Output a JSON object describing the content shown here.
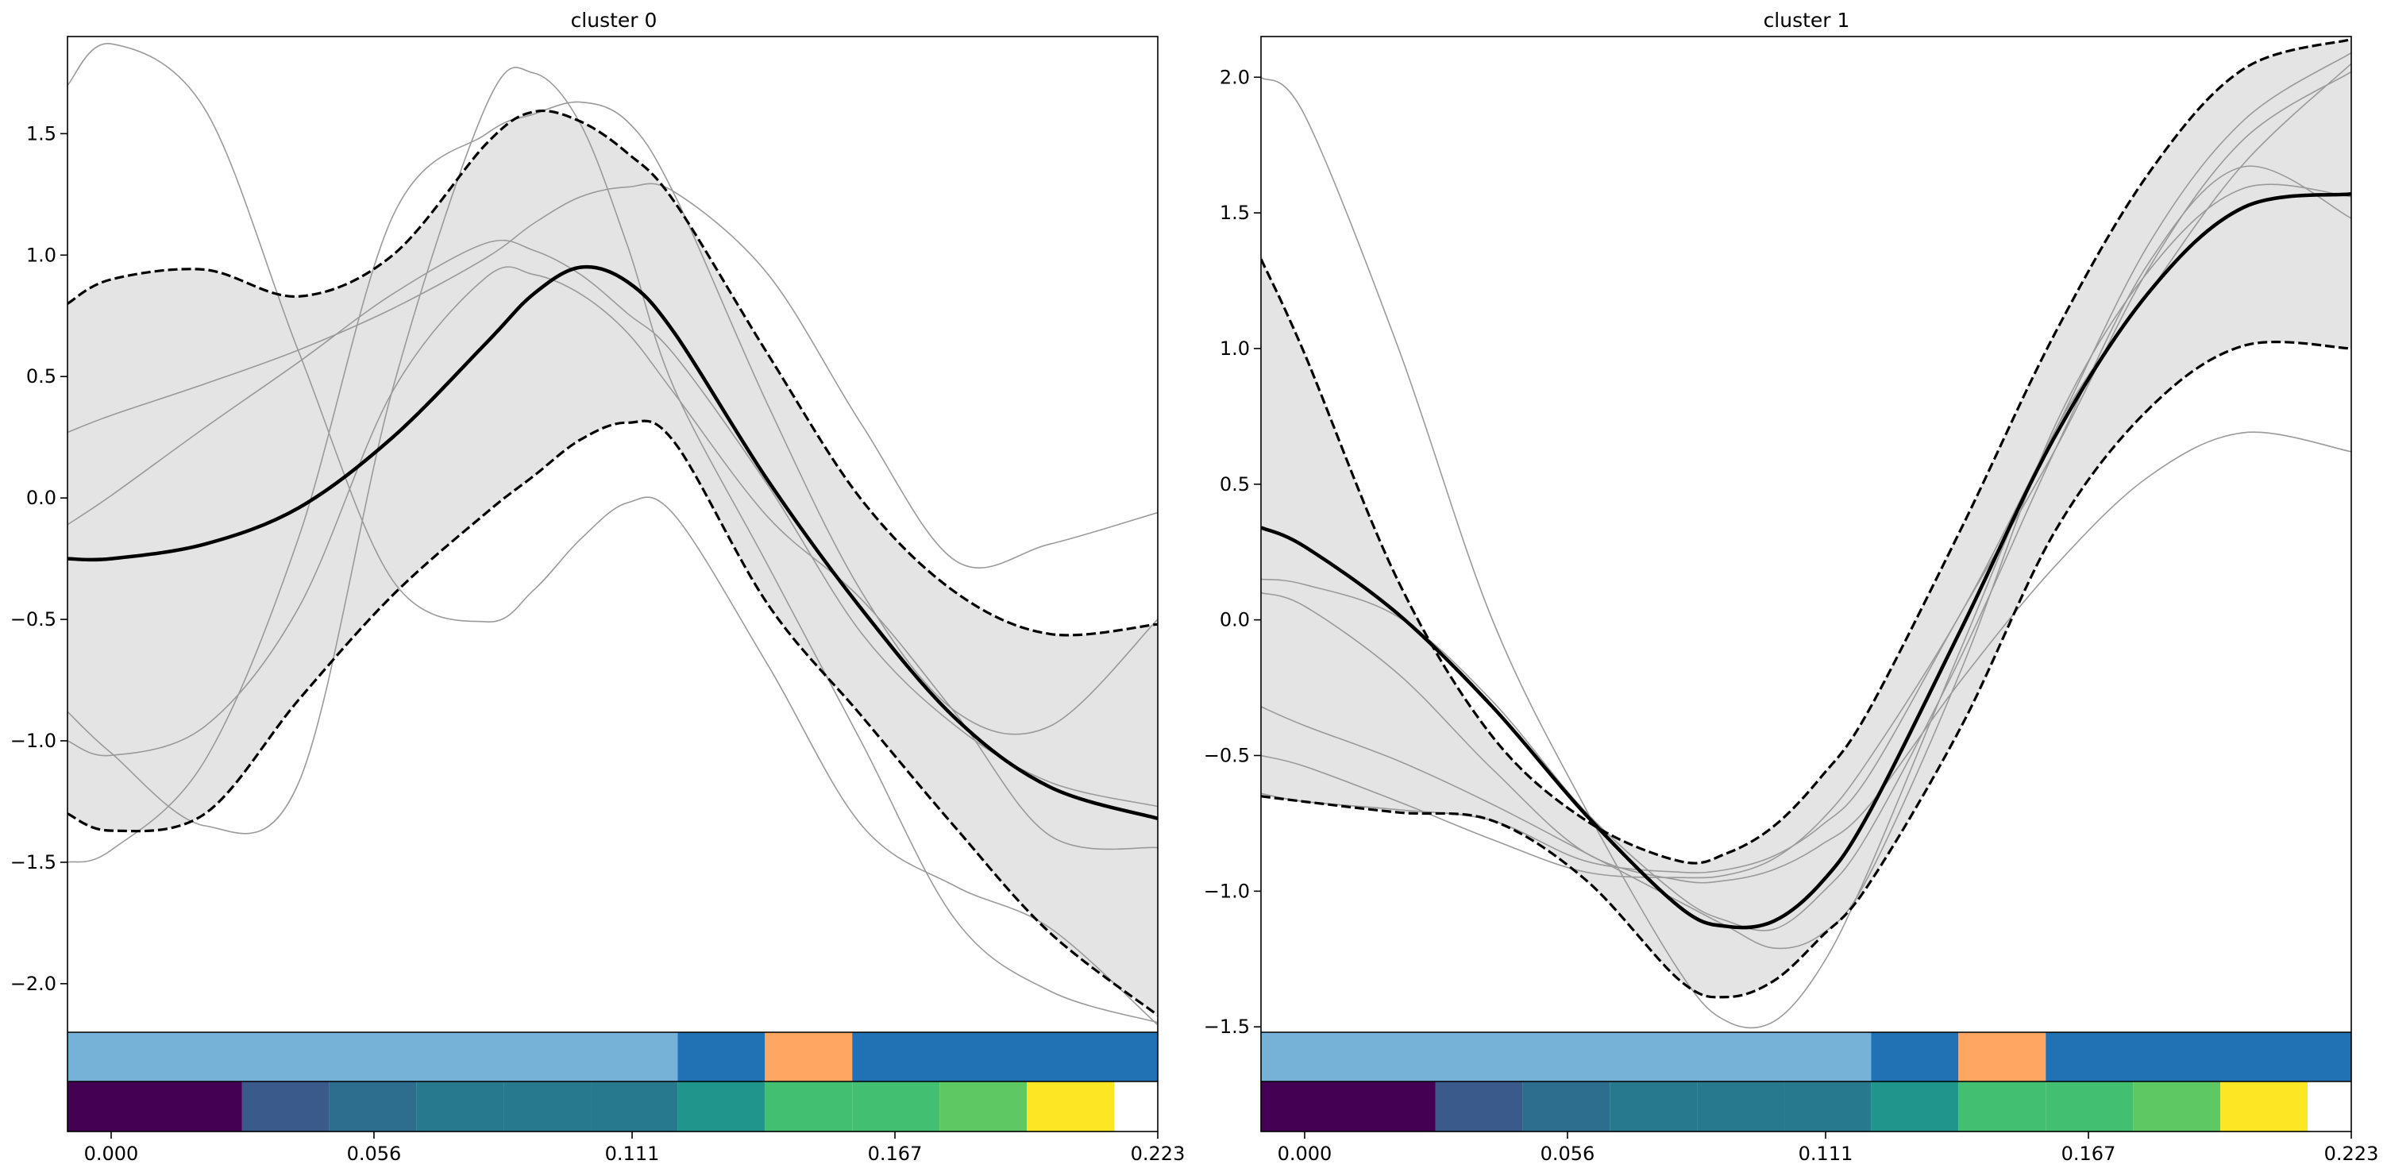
{
  "chart_data": [
    {
      "type": "line",
      "title": "cluster 0",
      "xlabel": "",
      "ylabel": "",
      "xlim": [
        -0.0093,
        0.223
      ],
      "ylim": [
        -2.2,
        1.9
      ],
      "x_ticks": [
        0.0,
        0.056,
        0.111,
        0.167,
        0.223
      ],
      "x_tick_labels": [
        "0.000",
        "0.056",
        "0.111",
        "0.167",
        "0.223"
      ],
      "y_ticks": [
        1.5,
        1.0,
        0.5,
        0.0,
        -0.5,
        -1.0,
        -1.5,
        -2.0
      ],
      "y_tick_labels": [
        "1.5",
        "1.0",
        "0.5",
        "0.0",
        "−0.5",
        "−1.0",
        "−1.5",
        "−2.0"
      ],
      "grid": false,
      "x": [
        -0.0093,
        0.0,
        0.02,
        0.04,
        0.06,
        0.08,
        0.09,
        0.1,
        0.11,
        0.12,
        0.14,
        0.16,
        0.18,
        0.2,
        0.223
      ],
      "mean": [
        -0.25,
        -0.25,
        -0.19,
        -0.04,
        0.25,
        0.64,
        0.84,
        0.95,
        0.89,
        0.68,
        0.07,
        -0.46,
        -0.91,
        -1.19,
        -1.32
      ],
      "upper": [
        0.8,
        0.9,
        0.94,
        0.83,
        1.0,
        1.46,
        1.59,
        1.55,
        1.42,
        1.22,
        0.59,
        -0.01,
        -0.39,
        -0.56,
        -0.52
      ],
      "lower": [
        -1.3,
        -1.37,
        -1.3,
        -0.83,
        -0.4,
        -0.06,
        0.09,
        0.24,
        0.31,
        0.23,
        -0.44,
        -0.9,
        -1.36,
        -1.79,
        -2.13
      ],
      "sample_series": [
        {
          "values": [
            1.7,
            1.87,
            1.6,
            0.6,
            -0.34,
            -0.51,
            -0.38,
            -0.17,
            -0.02,
            -0.07,
            -0.69,
            -1.35,
            -1.6,
            -1.77,
            -2.17
          ]
        },
        {
          "values": [
            -0.88,
            -1.05,
            -1.35,
            -1.17,
            0.45,
            1.62,
            1.75,
            1.54,
            1.04,
            0.45,
            -0.28,
            -1.01,
            -1.74,
            -2.03,
            -2.16
          ]
        },
        {
          "values": [
            0.27,
            0.34,
            0.47,
            0.61,
            0.78,
            0.99,
            1.13,
            1.24,
            1.28,
            1.26,
            0.92,
            0.3,
            -0.26,
            -0.19,
            -0.06
          ]
        },
        {
          "values": [
            -0.11,
            0.01,
            0.29,
            0.56,
            0.84,
            1.05,
            1.02,
            0.92,
            0.76,
            0.59,
            0.05,
            -0.56,
            -0.94,
            -1.17,
            -1.27
          ]
        },
        {
          "values": [
            -1.5,
            -1.45,
            -1.08,
            -0.16,
            1.16,
            1.5,
            1.58,
            1.63,
            1.55,
            1.25,
            0.38,
            -0.39,
            -0.88,
            -0.94,
            -0.5
          ]
        },
        {
          "values": [
            -1.0,
            -1.06,
            -0.94,
            -0.45,
            0.44,
            0.91,
            0.92,
            0.84,
            0.68,
            0.43,
            -0.08,
            -0.42,
            -0.89,
            -1.39,
            -1.44
          ]
        }
      ],
      "colorbar_top": [
        {
          "x0": -0.0093,
          "x1": 0.1207,
          "color": "#76b2d7"
        },
        {
          "x0": 0.1207,
          "x1": 0.1393,
          "color": "#2171b5"
        },
        {
          "x0": 0.1393,
          "x1": 0.1579,
          "color": "#fda762"
        },
        {
          "x0": 0.1579,
          "x1": 0.223,
          "color": "#2171b5"
        }
      ],
      "colorbar_bottom": [
        {
          "x0": -0.0093,
          "x1": 0.0279,
          "color": "#440154"
        },
        {
          "x0": 0.0279,
          "x1": 0.0465,
          "color": "#3a5a8c"
        },
        {
          "x0": 0.0465,
          "x1": 0.065,
          "color": "#2d6e8e"
        },
        {
          "x0": 0.065,
          "x1": 0.0836,
          "color": "#277a8e"
        },
        {
          "x0": 0.0836,
          "x1": 0.1022,
          "color": "#277a8e"
        },
        {
          "x0": 0.1022,
          "x1": 0.1207,
          "color": "#277a8e"
        },
        {
          "x0": 0.1207,
          "x1": 0.1393,
          "color": "#1f968b"
        },
        {
          "x0": 0.1393,
          "x1": 0.1579,
          "color": "#43bf71"
        },
        {
          "x0": 0.1579,
          "x1": 0.1765,
          "color": "#43bf71"
        },
        {
          "x0": 0.1765,
          "x1": 0.1951,
          "color": "#5ec962"
        },
        {
          "x0": 0.1951,
          "x1": 0.2137,
          "color": "#fde725"
        },
        {
          "x0": 0.2137,
          "x1": 0.223,
          "color": "#ffffff"
        }
      ]
    },
    {
      "type": "line",
      "title": "cluster 1",
      "xlabel": "",
      "ylabel": "",
      "xlim": [
        -0.0093,
        0.223
      ],
      "ylim": [
        -1.52,
        2.15
      ],
      "x_ticks": [
        0.0,
        0.056,
        0.111,
        0.167,
        0.223
      ],
      "x_tick_labels": [
        "0.000",
        "0.056",
        "0.111",
        "0.167",
        "0.223"
      ],
      "y_ticks": [
        2.0,
        1.5,
        1.0,
        0.5,
        0.0,
        -0.5,
        -1.0,
        -1.5
      ],
      "y_tick_labels": [
        "2.0",
        "1.5",
        "1.0",
        "0.5",
        "0.0",
        "−0.5",
        "−1.0",
        "−1.5"
      ],
      "grid": false,
      "x": [
        -0.0093,
        0.0,
        0.02,
        0.04,
        0.06,
        0.08,
        0.09,
        0.1,
        0.11,
        0.12,
        0.14,
        0.16,
        0.18,
        0.2,
        0.223
      ],
      "mean": [
        0.34,
        0.27,
        0.02,
        -0.32,
        -0.72,
        -1.06,
        -1.13,
        -1.11,
        -0.97,
        -0.72,
        -0.03,
        0.68,
        1.21,
        1.52,
        1.57
      ],
      "upper": [
        1.33,
        0.98,
        0.14,
        -0.43,
        -0.74,
        -0.89,
        -0.86,
        -0.76,
        -0.58,
        -0.34,
        0.34,
        1.06,
        1.65,
        2.03,
        2.14
      ],
      "lower": [
        -0.65,
        -0.67,
        -0.71,
        -0.74,
        -0.96,
        -1.33,
        -1.39,
        -1.33,
        -1.17,
        -0.98,
        -0.39,
        0.33,
        0.78,
        1.01,
        1.0
      ],
      "sample_series": [
        {
          "values": [
            2.0,
            1.86,
            1.0,
            0.0,
            -0.7,
            -1.3,
            -1.48,
            -1.48,
            -1.28,
            -0.93,
            -0.1,
            0.7,
            1.21,
            1.68,
            2.05
          ]
        },
        {
          "values": [
            0.15,
            0.13,
            0.01,
            -0.3,
            -0.71,
            -1.02,
            -1.11,
            -1.14,
            -1.01,
            -0.79,
            -0.13,
            0.63,
            1.32,
            1.67,
            1.48
          ]
        },
        {
          "values": [
            -0.32,
            -0.39,
            -0.52,
            -0.68,
            -0.86,
            -1.04,
            -1.13,
            -1.21,
            -1.16,
            -0.95,
            -0.18,
            0.72,
            1.29,
            1.59,
            1.56
          ]
        },
        {
          "values": [
            -0.5,
            -0.54,
            -0.67,
            -0.81,
            -0.93,
            -0.95,
            -0.94,
            -0.88,
            -0.74,
            -0.52,
            0.03,
            0.7,
            1.39,
            1.84,
            2.09
          ]
        },
        {
          "values": [
            -0.64,
            -0.67,
            -0.7,
            -0.74,
            -0.89,
            -0.93,
            -0.92,
            -0.87,
            -0.76,
            -0.58,
            0.03,
            0.63,
            1.3,
            1.77,
            2.02
          ]
        },
        {
          "values": [
            0.1,
            0.05,
            -0.2,
            -0.55,
            -0.86,
            -0.96,
            -0.96,
            -0.92,
            -0.83,
            -0.69,
            -0.22,
            0.2,
            0.53,
            0.69,
            0.62
          ]
        }
      ],
      "colorbar_top": [
        {
          "x0": -0.0093,
          "x1": 0.1207,
          "color": "#76b2d7"
        },
        {
          "x0": 0.1207,
          "x1": 0.1393,
          "color": "#2171b5"
        },
        {
          "x0": 0.1393,
          "x1": 0.1579,
          "color": "#fda762"
        },
        {
          "x0": 0.1579,
          "x1": 0.223,
          "color": "#2171b5"
        }
      ],
      "colorbar_bottom": [
        {
          "x0": -0.0093,
          "x1": 0.0279,
          "color": "#440154"
        },
        {
          "x0": 0.0279,
          "x1": 0.0465,
          "color": "#3a5a8c"
        },
        {
          "x0": 0.0465,
          "x1": 0.065,
          "color": "#2d6e8e"
        },
        {
          "x0": 0.065,
          "x1": 0.0836,
          "color": "#277a8e"
        },
        {
          "x0": 0.0836,
          "x1": 0.1022,
          "color": "#277a8e"
        },
        {
          "x0": 0.1022,
          "x1": 0.1207,
          "color": "#277a8e"
        },
        {
          "x0": 0.1207,
          "x1": 0.1393,
          "color": "#1f968b"
        },
        {
          "x0": 0.1393,
          "x1": 0.1579,
          "color": "#43bf71"
        },
        {
          "x0": 0.1579,
          "x1": 0.1765,
          "color": "#43bf71"
        },
        {
          "x0": 0.1765,
          "x1": 0.1951,
          "color": "#5ec962"
        },
        {
          "x0": 0.1951,
          "x1": 0.2137,
          "color": "#fde725"
        },
        {
          "x0": 0.2137,
          "x1": 0.223,
          "color": "#ffffff"
        }
      ]
    }
  ],
  "colors": {
    "band": "#e4e4e4",
    "mean_line": "#000000",
    "bound_line": "#000000",
    "sample_line": "#9a9a9a"
  }
}
